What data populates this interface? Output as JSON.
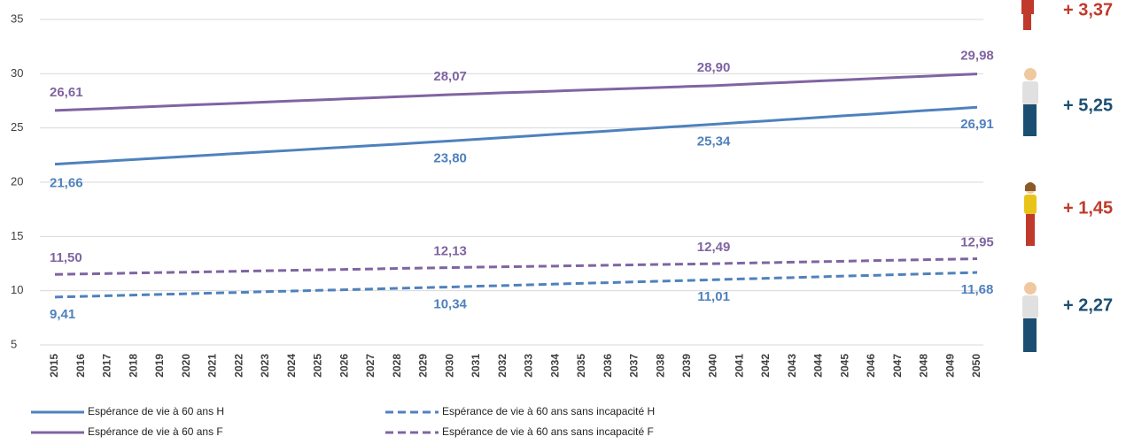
{
  "chart_data": {
    "type": "line",
    "categories": [
      "2015",
      "2016",
      "2017",
      "2018",
      "2019",
      "2020",
      "2021",
      "2022",
      "2023",
      "2024",
      "2025",
      "2026",
      "2027",
      "2028",
      "2029",
      "2030",
      "2031",
      "2032",
      "2033",
      "2034",
      "2035",
      "2036",
      "2037",
      "2038",
      "2039",
      "2040",
      "2041",
      "2042",
      "2043",
      "2044",
      "2045",
      "2046",
      "2047",
      "2048",
      "2049",
      "2050"
    ],
    "ylim": [
      5,
      35
    ],
    "yticks": [
      5,
      10,
      15,
      20,
      25,
      30,
      35
    ],
    "grid": true,
    "legend": "bottom",
    "series": [
      {
        "name": "Espérance de vie à 60 ans H",
        "color": "#4f81bd",
        "dashed": false,
        "values": [
          21.66,
          21.8,
          21.95,
          22.09,
          22.23,
          22.37,
          22.52,
          22.66,
          22.8,
          22.94,
          23.09,
          23.23,
          23.37,
          23.51,
          23.66,
          23.8,
          23.95,
          24.11,
          24.26,
          24.42,
          24.57,
          24.72,
          24.88,
          25.03,
          25.19,
          25.34,
          25.5,
          25.65,
          25.81,
          25.97,
          26.13,
          26.28,
          26.44,
          26.6,
          26.75,
          26.91
        ],
        "value_labels": [
          "21,66",
          null,
          null,
          null,
          null,
          null,
          null,
          null,
          null,
          null,
          null,
          null,
          null,
          null,
          null,
          "23,80",
          null,
          null,
          null,
          null,
          null,
          null,
          null,
          null,
          null,
          "25,34",
          null,
          null,
          null,
          null,
          null,
          null,
          null,
          null,
          null,
          "26,91"
        ]
      },
      {
        "name": "Espérance de vie à 60 ans F",
        "color": "#8064a2",
        "dashed": false,
        "values": [
          26.61,
          26.71,
          26.8,
          26.9,
          27.0,
          27.1,
          27.19,
          27.29,
          27.39,
          27.49,
          27.58,
          27.68,
          27.78,
          27.88,
          27.97,
          28.07,
          28.15,
          28.24,
          28.32,
          28.4,
          28.49,
          28.57,
          28.65,
          28.73,
          28.82,
          28.9,
          29.01,
          29.12,
          29.22,
          29.33,
          29.44,
          29.55,
          29.66,
          29.76,
          29.87,
          29.98
        ],
        "value_labels": [
          "26,61",
          null,
          null,
          null,
          null,
          null,
          null,
          null,
          null,
          null,
          null,
          null,
          null,
          null,
          null,
          "28,07",
          null,
          null,
          null,
          null,
          null,
          null,
          null,
          null,
          null,
          "28,90",
          null,
          null,
          null,
          null,
          null,
          null,
          null,
          null,
          null,
          "29,98"
        ]
      },
      {
        "name": "Espérance de vie à 60 ans sans incapacité H",
        "color": "#4f81bd",
        "dashed": true,
        "values": [
          9.41,
          9.47,
          9.53,
          9.6,
          9.66,
          9.72,
          9.78,
          9.84,
          9.91,
          9.97,
          10.03,
          10.09,
          10.15,
          10.22,
          10.28,
          10.34,
          10.41,
          10.47,
          10.54,
          10.61,
          10.68,
          10.74,
          10.81,
          10.88,
          10.94,
          11.01,
          11.08,
          11.14,
          11.21,
          11.28,
          11.35,
          11.41,
          11.48,
          11.55,
          11.61,
          11.68
        ],
        "value_labels": [
          "9,41",
          null,
          null,
          null,
          null,
          null,
          null,
          null,
          null,
          null,
          null,
          null,
          null,
          null,
          null,
          "10,34",
          null,
          null,
          null,
          null,
          null,
          null,
          null,
          null,
          null,
          "11,01",
          null,
          null,
          null,
          null,
          null,
          null,
          null,
          null,
          null,
          "11,68"
        ]
      },
      {
        "name": "Espérance de vie à 60 ans sans incapacité F",
        "color": "#8064a2",
        "dashed": true,
        "values": [
          11.5,
          11.54,
          11.58,
          11.63,
          11.67,
          11.71,
          11.75,
          11.79,
          11.84,
          11.88,
          11.92,
          11.96,
          12.0,
          12.05,
          12.09,
          12.13,
          12.17,
          12.2,
          12.24,
          12.27,
          12.31,
          12.35,
          12.38,
          12.42,
          12.45,
          12.49,
          12.54,
          12.58,
          12.63,
          12.67,
          12.72,
          12.77,
          12.81,
          12.86,
          12.9,
          12.95
        ],
        "value_labels": [
          "11,50",
          null,
          null,
          null,
          null,
          null,
          null,
          null,
          null,
          null,
          null,
          null,
          null,
          null,
          null,
          "12,13",
          null,
          null,
          null,
          null,
          null,
          null,
          null,
          null,
          null,
          "12,49",
          null,
          null,
          null,
          null,
          null,
          null,
          null,
          null,
          null,
          "12,95"
        ]
      }
    ],
    "annotations": [
      {
        "text": "+ 3,37",
        "color": "#c0392b"
      },
      {
        "text": "+ 5,25",
        "color": "#1b4f72"
      },
      {
        "text": "+ 1,45",
        "color": "#c0392b"
      },
      {
        "text": "+ 2,27",
        "color": "#1b4f72"
      }
    ]
  }
}
